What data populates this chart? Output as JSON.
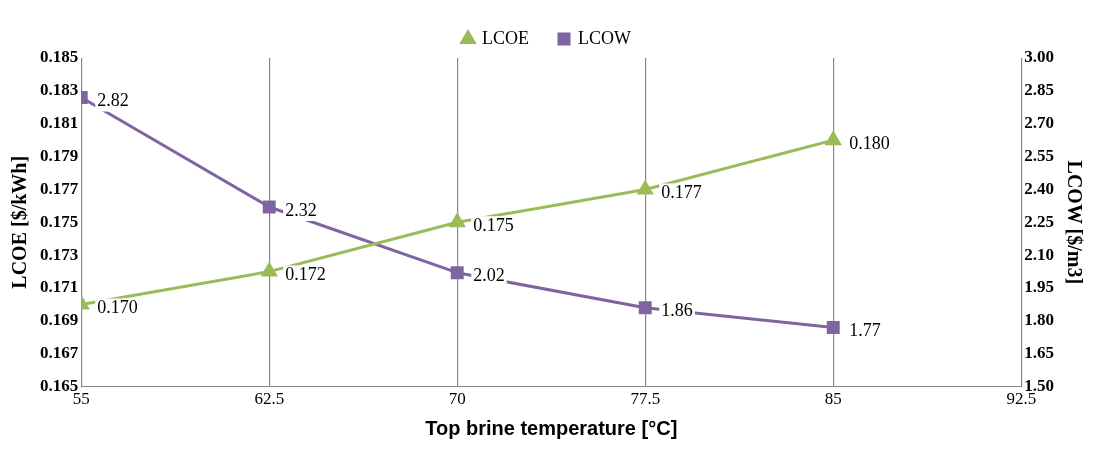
{
  "chart_data": {
    "type": "line",
    "xlabel": "Top brine temperature [°C]",
    "ylabel": "LCOE [$/kWh]",
    "y2label": "LCOW [$/m3]",
    "x": [
      55,
      62.5,
      70,
      77.5,
      85
    ],
    "series": [
      {
        "name": "LCOE",
        "color": "#9bbb59",
        "marker": "triangle",
        "values": [
          0.17,
          0.172,
          0.175,
          0.177,
          0.18
        ],
        "value_labels": [
          "0.170",
          "0.172",
          "0.175",
          "0.177",
          "0.180"
        ]
      },
      {
        "name": "LCOW",
        "color": "#8064a2",
        "marker": "square",
        "axis": "y2",
        "values": [
          2.82,
          2.32,
          2.02,
          1.86,
          1.77
        ],
        "value_labels": [
          "2.82",
          "2.32",
          "2.02",
          "1.86",
          "1.77"
        ]
      }
    ],
    "xlim": [
      55,
      92.5
    ],
    "xticks": [
      55,
      62.5,
      70,
      77.5,
      85,
      92.5
    ],
    "ylim": [
      0.165,
      0.185
    ],
    "yticks": [
      {
        "value": 0.165,
        "label": "0.165"
      },
      {
        "value": 0.167,
        "label": "0.167"
      },
      {
        "value": 0.169,
        "label": "0.169"
      },
      {
        "value": 0.171,
        "label": "0.171"
      },
      {
        "value": 0.173,
        "label": "0.173"
      },
      {
        "value": 0.175,
        "label": "0.175"
      },
      {
        "value": 0.177,
        "label": "0.177"
      },
      {
        "value": 0.179,
        "label": "0.179"
      },
      {
        "value": 0.181,
        "label": "0.181"
      },
      {
        "value": 0.183,
        "label": "0.183"
      },
      {
        "value": 0.185,
        "label": "0.185"
      }
    ],
    "y2lim": [
      1.5,
      3.0
    ],
    "y2ticks": [
      {
        "value": 1.5,
        "label": "1.50"
      },
      {
        "value": 1.65,
        "label": "1.65"
      },
      {
        "value": 1.8,
        "label": "1.80"
      },
      {
        "value": 1.95,
        "label": "1.95"
      },
      {
        "value": 2.1,
        "label": "2.10"
      },
      {
        "value": 2.25,
        "label": "2.25"
      },
      {
        "value": 2.4,
        "label": "2.40"
      },
      {
        "value": 2.55,
        "label": "2.55"
      },
      {
        "value": 2.7,
        "label": "2.70"
      },
      {
        "value": 2.85,
        "label": "2.85"
      },
      {
        "value": 3.0,
        "label": "3.00"
      }
    ],
    "grid": "x",
    "legend": "top"
  }
}
